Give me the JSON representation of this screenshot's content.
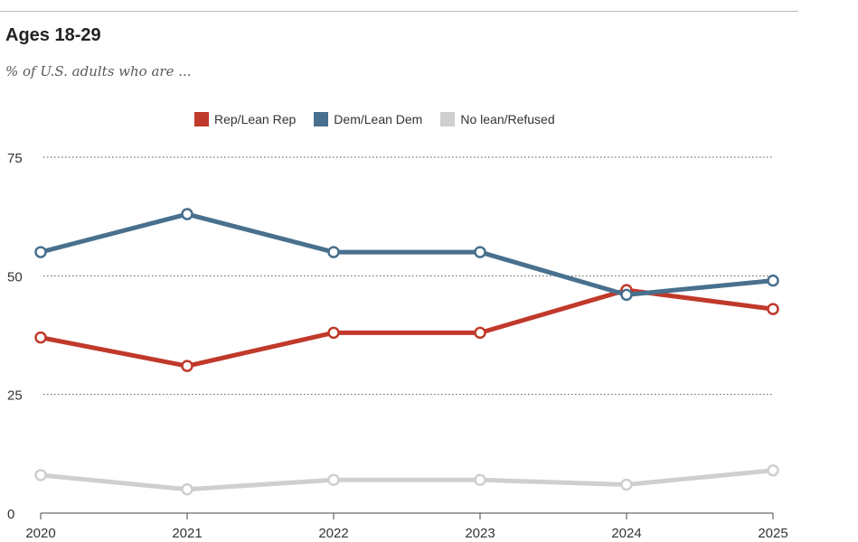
{
  "chart_data": {
    "type": "line",
    "title": "Ages 18-29",
    "subtitle": "% of U.S. adults who are ...",
    "categories": [
      "2020",
      "2021",
      "2022",
      "2023",
      "2024",
      "2025"
    ],
    "ylim": [
      0,
      75
    ],
    "yticks": [
      "0",
      "25",
      "50",
      "75"
    ],
    "legend_placement": "top",
    "series": [
      {
        "name": "Rep/Lean Rep",
        "color": "#c0392b",
        "values": [
          37,
          31,
          38,
          38,
          47,
          43
        ]
      },
      {
        "name": "Dem/Lean Dem",
        "color": "#48708e",
        "values": [
          55,
          63,
          55,
          55,
          46,
          49
        ]
      },
      {
        "name": "No lean/Refused",
        "color": "#cfcfcf",
        "values": [
          8,
          5,
          7,
          7,
          6,
          9
        ]
      }
    ]
  }
}
